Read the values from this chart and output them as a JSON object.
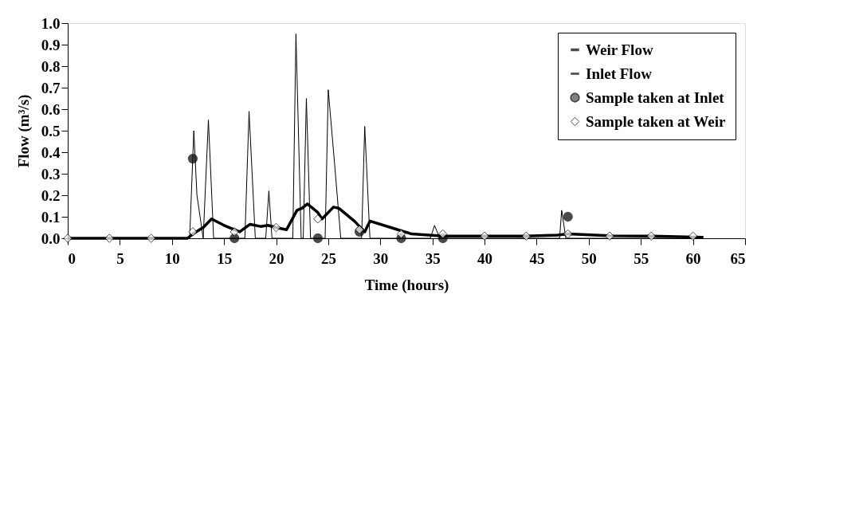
{
  "chart_data": {
    "type": "line",
    "xlabel": "Time   (hours)",
    "ylabel": "Flow   (m³/s)",
    "xlim": [
      0,
      65
    ],
    "xticks": [
      0,
      5,
      10,
      15,
      20,
      25,
      30,
      35,
      40,
      45,
      50,
      55,
      60,
      65
    ],
    "ylim": [
      0,
      1
    ],
    "yticks": [
      {
        "value": 0,
        "label": "0.0"
      },
      0.1,
      0.2,
      0.3,
      0.4,
      0.5,
      0.6,
      0.7,
      0.8,
      0.9,
      {
        "value": 1,
        "label": "1.0"
      }
    ],
    "grid": false,
    "legend": "top right",
    "series": [
      {
        "name": "Weir Flow",
        "color": "#000000",
        "line_style": "solid",
        "x": [
          0,
          11.5,
          12,
          13,
          13.8,
          15,
          16.5,
          17.5,
          18.5,
          19.2,
          20,
          21,
          22,
          22.5,
          23,
          24,
          24.4,
          25.5,
          26,
          27.5,
          28.5,
          29,
          31,
          33,
          36,
          40,
          44,
          47,
          48,
          52,
          56,
          61
        ],
        "values": [
          0,
          0,
          0.02,
          0.05,
          0.09,
          0.06,
          0.03,
          0.065,
          0.055,
          0.06,
          0.05,
          0.04,
          0.13,
          0.14,
          0.16,
          0.12,
          0.09,
          0.145,
          0.14,
          0.08,
          0.03,
          0.08,
          0.05,
          0.02,
          0.01,
          0.01,
          0.01,
          0.015,
          0.02,
          0.012,
          0.01,
          0.005
        ]
      },
      {
        "name": "Inlet Flow",
        "color": "#000000",
        "line_style": "solid",
        "x": [
          0,
          11.7,
          12.1,
          12.4,
          13.0,
          13.5,
          14.0,
          17.0,
          17.4,
          18.0,
          19.0,
          19.3,
          19.6,
          21.6,
          21.9,
          22.4,
          22.6,
          22.9,
          23.3,
          24.7,
          25.0,
          25.6,
          26.2,
          28.2,
          28.5,
          29.0,
          34.8,
          35.2,
          35.7,
          47.2,
          47.4,
          47.8,
          61
        ],
        "values": [
          0,
          0,
          0.5,
          0.2,
          0,
          0.55,
          0,
          0,
          0.59,
          0,
          0,
          0.22,
          0,
          0,
          0.95,
          0,
          0,
          0.65,
          0,
          0,
          0.69,
          0.35,
          0,
          0,
          0.52,
          0,
          0,
          0.06,
          0,
          0,
          0.13,
          0,
          0
        ]
      },
      {
        "name": "Sample taken at Inlet",
        "type": "scatter",
        "marker": "circle",
        "color": "#000000",
        "x": [
          12,
          16,
          24,
          28,
          32,
          36,
          48
        ],
        "values": [
          0.37,
          0,
          0,
          0.03,
          0,
          0,
          0.1
        ]
      },
      {
        "name": "Sample taken at Weir",
        "type": "scatter",
        "marker": "diamond",
        "color": "#000000",
        "x": [
          0,
          4,
          8,
          12,
          16,
          20,
          24,
          28,
          32,
          36,
          40,
          44,
          48,
          52,
          56,
          60
        ],
        "values": [
          0,
          0,
          0,
          0.03,
          0.03,
          0.05,
          0.09,
          0.04,
          0.02,
          0.02,
          0.01,
          0.01,
          0.02,
          0.01,
          0.01,
          0.01
        ]
      }
    ]
  }
}
